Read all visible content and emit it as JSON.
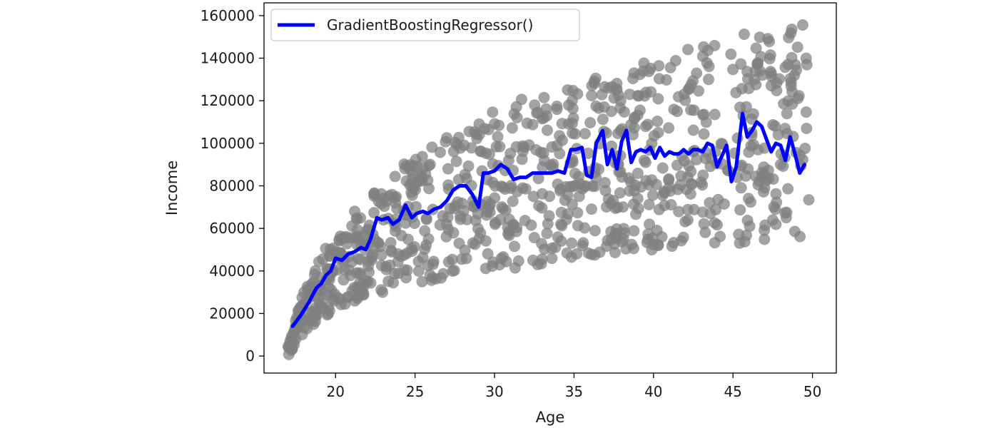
{
  "chart_data": {
    "type": "scatter",
    "title": "",
    "xlabel": "Age",
    "ylabel": "Income",
    "xlim": [
      15.5,
      51.5
    ],
    "ylim": [
      -8000,
      166000
    ],
    "xticks": [
      20,
      25,
      30,
      35,
      40,
      45,
      50
    ],
    "yticks": [
      0,
      20000,
      40000,
      60000,
      80000,
      100000,
      120000,
      140000,
      160000
    ],
    "grid": false,
    "legend": {
      "location": "upper-left",
      "entries": [
        "GradientBoostingRegressor()"
      ]
    },
    "scatter_color": "#808080",
    "line_color": "#0000ff",
    "scatter_model": {
      "x_min": 17,
      "x_max": 49.8,
      "count": 900,
      "upper_envelope": [
        [
          17,
          8000
        ],
        [
          18,
          30000
        ],
        [
          19,
          47000
        ],
        [
          20,
          58000
        ],
        [
          22,
          75000
        ],
        [
          25,
          95000
        ],
        [
          28,
          108000
        ],
        [
          30,
          118000
        ],
        [
          33,
          124000
        ],
        [
          36,
          130000
        ],
        [
          40,
          140000
        ],
        [
          45,
          150000
        ],
        [
          49.8,
          160000
        ]
      ],
      "lower_envelope": [
        [
          17,
          0
        ],
        [
          18,
          10000
        ],
        [
          19,
          17000
        ],
        [
          20,
          22000
        ],
        [
          22,
          28000
        ],
        [
          25,
          34000
        ],
        [
          28,
          38000
        ],
        [
          30,
          40000
        ],
        [
          33,
          43000
        ],
        [
          36,
          47000
        ],
        [
          40,
          50000
        ],
        [
          45,
          52000
        ],
        [
          49.8,
          56000
        ]
      ]
    },
    "series": [
      {
        "name": "GradientBoostingRegressor()",
        "type": "line",
        "x": [
          17.3,
          17.8,
          18.3,
          18.8,
          19.1,
          19.4,
          19.7,
          20.0,
          20.4,
          20.8,
          21.2,
          21.6,
          21.9,
          22.2,
          22.6,
          22.9,
          23.3,
          23.6,
          24.0,
          24.4,
          24.8,
          25.1,
          25.5,
          25.8,
          26.2,
          26.6,
          27.0,
          27.4,
          27.8,
          28.2,
          28.6,
          29.0,
          29.3,
          29.6,
          30.0,
          30.4,
          30.8,
          31.2,
          31.6,
          32.0,
          32.4,
          32.8,
          33.2,
          33.6,
          34.0,
          34.4,
          34.8,
          35.1,
          35.5,
          35.8,
          36.1,
          36.4,
          36.8,
          37.1,
          37.4,
          37.7,
          38.0,
          38.3,
          38.6,
          38.9,
          39.2,
          39.5,
          39.8,
          40.1,
          40.4,
          40.7,
          41.0,
          41.3,
          41.6,
          41.9,
          42.2,
          42.5,
          42.8,
          43.1,
          43.4,
          43.7,
          44.0,
          44.3,
          44.6,
          44.9,
          45.2,
          45.6,
          45.9,
          46.2,
          46.5,
          46.8,
          47.1,
          47.4,
          47.7,
          48.0,
          48.3,
          48.6,
          48.9,
          49.2,
          49.5
        ],
        "y": [
          14000,
          19000,
          25000,
          32000,
          34000,
          38000,
          40000,
          46000,
          45000,
          48000,
          49000,
          51000,
          50000,
          55000,
          65000,
          64000,
          65000,
          62000,
          64000,
          71000,
          65000,
          67000,
          68000,
          67000,
          69000,
          70000,
          73000,
          78000,
          80000,
          80000,
          76000,
          70000,
          86000,
          86000,
          87000,
          90000,
          88000,
          83000,
          84000,
          84000,
          86000,
          86000,
          86000,
          86000,
          87000,
          86000,
          97000,
          97000,
          98000,
          85000,
          84000,
          100000,
          106000,
          90000,
          97000,
          88000,
          101000,
          106000,
          91000,
          96000,
          97000,
          96000,
          98000,
          93000,
          98000,
          94000,
          96000,
          95000,
          95000,
          97000,
          95000,
          97000,
          97000,
          96000,
          100000,
          99000,
          89000,
          94000,
          99000,
          82000,
          89000,
          114000,
          103000,
          106000,
          110000,
          108000,
          102000,
          96000,
          100000,
          99000,
          92000,
          103000,
          95000,
          86000,
          90000
        ]
      }
    ]
  }
}
